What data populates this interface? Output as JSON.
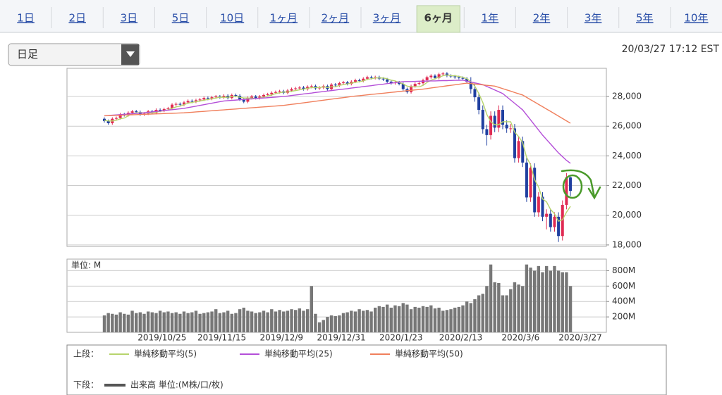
{
  "tabs": [
    "1日",
    "2日",
    "3日",
    "5日",
    "10日",
    "1ヶ月",
    "2ヶ月",
    "3ヶ月",
    "6ヶ月",
    "1年",
    "2年",
    "3年",
    "5年",
    "10年"
  ],
  "selected_tab": "6ヶ月",
  "dropdown": "日足",
  "timestamp": "20/03/27 17:12 EST",
  "legend_labels": [
    "上段：",
    "下段："
  ],
  "chart_data": [
    {
      "type": "candlestick",
      "up_color": "#e02a52",
      "down_color": "#1f3fa0",
      "grid": true,
      "open": [
        26500,
        26350,
        26200,
        26500,
        26550,
        26800,
        26750,
        26900,
        27000,
        26950,
        26800,
        26850,
        27000,
        26900,
        27100,
        27050,
        27150,
        27200,
        27450,
        27500,
        27450,
        27600,
        27700,
        27650,
        27750,
        27800,
        27900,
        27850,
        27950,
        28000,
        27950,
        28050,
        27900,
        28100,
        28050,
        27800,
        27650,
        27900,
        28000,
        27900,
        28000,
        28100,
        28150,
        28250,
        28300,
        28350,
        28250,
        28400,
        28500,
        28550,
        28600,
        28500,
        28650,
        28700,
        28550,
        28600,
        28700,
        28500,
        28800,
        28750,
        28900,
        28950,
        28850,
        29000,
        29100,
        29050,
        29200,
        29300,
        29250,
        29300,
        29200,
        29150,
        29000,
        28900,
        28950,
        28850,
        28500,
        28300,
        28700,
        28850,
        28900,
        29100,
        29300,
        29400,
        29250,
        29500,
        29550,
        29400,
        29350,
        29300,
        29250,
        29200,
        29000,
        28500,
        27950,
        27100,
        25800,
        25400,
        26700,
        25900,
        27100,
        26100,
        25850,
        25850,
        23850,
        25000,
        23550,
        21200,
        23200,
        20200,
        21250,
        19900,
        20100,
        19200,
        19900,
        18600,
        20700,
        22550
      ],
      "high": [
        26600,
        26450,
        26600,
        26650,
        26900,
        26900,
        27000,
        27100,
        27100,
        27050,
        26950,
        27100,
        27100,
        27200,
        27200,
        27250,
        27300,
        27550,
        27600,
        27600,
        27700,
        27800,
        27800,
        27850,
        27900,
        28000,
        28000,
        28050,
        28100,
        28100,
        28150,
        28150,
        28200,
        28200,
        28150,
        27900,
        28000,
        28100,
        28100,
        28100,
        28200,
        28250,
        28350,
        28400,
        28450,
        28450,
        28500,
        28600,
        28650,
        28700,
        28700,
        28750,
        28800,
        28800,
        28700,
        28800,
        28800,
        28900,
        28900,
        29000,
        29050,
        29050,
        29100,
        29200,
        29200,
        29300,
        29400,
        29400,
        29400,
        29400,
        29300,
        29250,
        29100,
        29050,
        29050,
        28950,
        28600,
        28800,
        28950,
        29000,
        29200,
        29400,
        29500,
        29500,
        29600,
        29650,
        29650,
        29500,
        29450,
        29400,
        29350,
        29300,
        29300,
        28800,
        28250,
        27400,
        26100,
        27000,
        27000,
        27400,
        27400,
        26400,
        26150,
        26150,
        25300,
        25300,
        23850,
        23500,
        23500,
        21550,
        21550,
        20400,
        20400,
        20200,
        20200,
        21000,
        22850,
        22600
      ],
      "low": [
        26250,
        26100,
        26100,
        26400,
        26450,
        26650,
        26650,
        26800,
        26850,
        26700,
        26700,
        26750,
        26800,
        26800,
        26950,
        26950,
        27050,
        27100,
        27350,
        27350,
        27350,
        27500,
        27550,
        27550,
        27650,
        27700,
        27750,
        27750,
        27850,
        27850,
        27850,
        27800,
        27800,
        27950,
        27700,
        27550,
        27550,
        27800,
        27800,
        27800,
        27900,
        28000,
        28050,
        28150,
        28200,
        28150,
        28150,
        28300,
        28400,
        28450,
        28400,
        28400,
        28550,
        28450,
        28450,
        28500,
        28400,
        28400,
        28650,
        28650,
        28800,
        28750,
        28750,
        28900,
        28950,
        28950,
        29100,
        29150,
        29150,
        29100,
        29050,
        28900,
        28800,
        28800,
        28750,
        28400,
        28200,
        28200,
        28600,
        28750,
        28800,
        29000,
        29200,
        29150,
        29150,
        29400,
        29300,
        29250,
        29200,
        29150,
        29100,
        28900,
        28200,
        27650,
        26800,
        25500,
        24700,
        25100,
        25600,
        25600,
        25800,
        25550,
        25550,
        23550,
        23550,
        23250,
        20900,
        20900,
        19900,
        19900,
        19600,
        19050,
        18900,
        18900,
        18200,
        18300,
        20400,
        21300
      ],
      "close": [
        26350,
        26200,
        26500,
        26550,
        26800,
        26750,
        26900,
        27000,
        26950,
        26800,
        26850,
        27000,
        26900,
        27100,
        27050,
        27150,
        27200,
        27450,
        27500,
        27450,
        27600,
        27700,
        27650,
        27750,
        27800,
        27900,
        27850,
        27950,
        28000,
        27950,
        28050,
        27900,
        28100,
        28050,
        27800,
        27650,
        27900,
        28000,
        27900,
        28000,
        28100,
        28150,
        28250,
        28300,
        28350,
        28250,
        28400,
        28500,
        28550,
        28600,
        28500,
        28650,
        28700,
        28550,
        28600,
        28700,
        28500,
        28800,
        28750,
        28900,
        28950,
        28850,
        29000,
        29100,
        29050,
        29200,
        29300,
        29250,
        29300,
        29200,
        29150,
        29000,
        28900,
        28950,
        28850,
        28500,
        28300,
        28700,
        28850,
        28900,
        29100,
        29300,
        29400,
        29250,
        29500,
        29550,
        29400,
        29350,
        29300,
        29250,
        29200,
        29000,
        28500,
        27950,
        27100,
        25800,
        25400,
        26700,
        25900,
        27100,
        26100,
        25850,
        25850,
        23850,
        25000,
        23550,
        21200,
        23200,
        20200,
        21250,
        19900,
        20100,
        19200,
        19900,
        18600,
        20700,
        22550,
        21640
      ],
      "series": [
        {
          "name": "単純移動平均(5)",
          "color": "#b7d46c",
          "values": [
            26400,
            26350,
            26350,
            26400,
            26500,
            26550,
            26700,
            26850,
            26900,
            26900,
            26900,
            26900,
            26900,
            26950,
            27000,
            27050,
            27100,
            27200,
            27300,
            27350,
            27450,
            27550,
            27600,
            27650,
            27700,
            27750,
            27800,
            27850,
            27900,
            27950,
            27950,
            27950,
            28000,
            28000,
            27950,
            27900,
            27900,
            27900,
            27850,
            27900,
            27950,
            28050,
            28100,
            28200,
            28250,
            28300,
            28300,
            28350,
            28400,
            28450,
            28500,
            28550,
            28600,
            28600,
            28600,
            28650,
            28600,
            28650,
            28650,
            28750,
            28800,
            28850,
            28900,
            28950,
            29000,
            29050,
            29150,
            29200,
            29250,
            29250,
            29250,
            29200,
            29100,
            29050,
            28950,
            28850,
            28700,
            28650,
            28650,
            28650,
            28750,
            28950,
            29100,
            29200,
            29300,
            29400,
            29450,
            29400,
            29400,
            29350,
            29300,
            29200,
            29000,
            28700,
            28200,
            27600,
            26800,
            26300,
            26100,
            26100,
            26300,
            26300,
            26300,
            25600,
            25300,
            24900,
            23900,
            23400,
            22400,
            21900,
            21100,
            20900,
            20400,
            20100,
            19600,
            19700,
            20200,
            20600
          ]
        },
        {
          "name": "単純移動平均(25)",
          "color": "#b44fd8",
          "values": [
            26700,
            26720,
            26740,
            26760,
            26780,
            26800,
            26820,
            26840,
            26860,
            26880,
            26900,
            26930,
            26960,
            26990,
            27020,
            27050,
            27080,
            27110,
            27140,
            27170,
            27200,
            27250,
            27300,
            27350,
            27400,
            27450,
            27500,
            27550,
            27600,
            27650,
            27700,
            27720,
            27740,
            27760,
            27780,
            27800,
            27820,
            27840,
            27860,
            27880,
            27900,
            27920,
            27940,
            27960,
            27980,
            28000,
            28030,
            28070,
            28100,
            28130,
            28170,
            28200,
            28230,
            28270,
            28300,
            28330,
            28370,
            28400,
            28430,
            28470,
            28500,
            28530,
            28570,
            28600,
            28630,
            28670,
            28700,
            28730,
            28770,
            28800,
            28830,
            28870,
            28900,
            28930,
            28970,
            29000,
            29010,
            29010,
            29020,
            29030,
            29030,
            29040,
            29050,
            29050,
            29060,
            29070,
            29070,
            29080,
            29090,
            29090,
            29100,
            29040,
            28980,
            28920,
            28860,
            28800,
            28680,
            28560,
            28440,
            28320,
            28200,
            27980,
            27760,
            27540,
            27320,
            27100,
            26760,
            26420,
            26080,
            25740,
            25400,
            25100,
            24800,
            24500,
            24200,
            23950,
            23700,
            23500
          ]
        },
        {
          "name": "単純移動平均(50)",
          "color": "#f07f5c",
          "values": [
            26700,
            26710,
            26720,
            26730,
            26740,
            26750,
            26760,
            26770,
            26780,
            26790,
            26800,
            26810,
            26820,
            26830,
            26840,
            26850,
            26860,
            26870,
            26880,
            26890,
            26900,
            26920,
            26940,
            26960,
            26980,
            27000,
            27020,
            27040,
            27060,
            27080,
            27100,
            27120,
            27140,
            27160,
            27180,
            27200,
            27220,
            27240,
            27260,
            27280,
            27300,
            27320,
            27340,
            27360,
            27380,
            27400,
            27435,
            27470,
            27505,
            27540,
            27575,
            27610,
            27645,
            27680,
            27715,
            27750,
            27785,
            27820,
            27855,
            27890,
            27925,
            27960,
            28000,
            28030,
            28055,
            28085,
            28110,
            28140,
            28165,
            28195,
            28220,
            28250,
            28280,
            28305,
            28335,
            28360,
            28390,
            28415,
            28445,
            28470,
            28500,
            28535,
            28575,
            28610,
            28645,
            28680,
            28720,
            28755,
            28790,
            28825,
            28865,
            28900,
            28870,
            28840,
            28815,
            28785,
            28755,
            28730,
            28700,
            28615,
            28530,
            28445,
            28360,
            28270,
            28185,
            28100,
            27945,
            27785,
            27630,
            27470,
            27315,
            27155,
            27000,
            26840,
            26680,
            26520,
            26360,
            26200
          ]
        }
      ],
      "ylim": [
        17900,
        29900
      ],
      "yticks": [
        {
          "value": 18000,
          "label": "18,000"
        },
        {
          "value": 20000,
          "label": "20,000"
        },
        {
          "value": 22000,
          "label": "22,000"
        },
        {
          "value": 24000,
          "label": "24,000"
        },
        {
          "value": 26000,
          "label": "26,000"
        },
        {
          "value": 28000,
          "label": "28,000"
        }
      ]
    },
    {
      "type": "bar",
      "y_label": "単位: M",
      "name": "出来高 単位:(M株/口/枚)",
      "color": "#777777",
      "grid": true,
      "categories": [
        null,
        null,
        null,
        null,
        null,
        null,
        null,
        null,
        null,
        null,
        null,
        null,
        "2019/10/25",
        null,
        null,
        null,
        null,
        null,
        null,
        null,
        null,
        null,
        null,
        null,
        null,
        null,
        null,
        "2019/11/15",
        null,
        null,
        null,
        null,
        null,
        null,
        null,
        null,
        null,
        null,
        null,
        null,
        null,
        null,
        "2019/12/9",
        null,
        null,
        null,
        null,
        null,
        null,
        null,
        null,
        null,
        null,
        null,
        null,
        null,
        null,
        "2019/12/31",
        null,
        null,
        null,
        null,
        null,
        null,
        null,
        null,
        null,
        null,
        null,
        null,
        null,
        null,
        "2020/1/23",
        null,
        null,
        null,
        null,
        null,
        null,
        null,
        null,
        null,
        null,
        null,
        null,
        null,
        null,
        "2020/2/13",
        null,
        null,
        null,
        null,
        null,
        null,
        null,
        null,
        null,
        null,
        null,
        null,
        null,
        null,
        "2020/3/6",
        null,
        null,
        null,
        null,
        null,
        null,
        null,
        null,
        null,
        null,
        null,
        null,
        null,
        null,
        "2020/3/27"
      ],
      "values": [
        220,
        250,
        240,
        230,
        260,
        240,
        230,
        280,
        250,
        260,
        240,
        270,
        260,
        250,
        280,
        260,
        270,
        250,
        260,
        240,
        270,
        250,
        260,
        280,
        240,
        250,
        260,
        270,
        300,
        250,
        260,
        280,
        240,
        250,
        300,
        320,
        280,
        270,
        250,
        260,
        280,
        260,
        300,
        270,
        290,
        270,
        280,
        300,
        290,
        310,
        280,
        300,
        600,
        240,
        130,
        160,
        200,
        220,
        210,
        220,
        250,
        260,
        280,
        270,
        300,
        280,
        290,
        270,
        320,
        340,
        330,
        360,
        320,
        350,
        340,
        380,
        360,
        300,
        330,
        320,
        340,
        330,
        350,
        310,
        320,
        280,
        290,
        300,
        320,
        330,
        350,
        400,
        380,
        430,
        480,
        500,
        600,
        880,
        650,
        640,
        480,
        480,
        560,
        650,
        620,
        600,
        880,
        840,
        800,
        860,
        780,
        860,
        800,
        860,
        800,
        780,
        780,
        600
      ],
      "ylim": [
        0,
        950
      ],
      "yticks": [
        {
          "value": 200,
          "label": "200M"
        },
        {
          "value": 400,
          "label": "400M"
        },
        {
          "value": 600,
          "label": "600M"
        },
        {
          "value": 800,
          "label": "800M"
        }
      ]
    }
  ]
}
